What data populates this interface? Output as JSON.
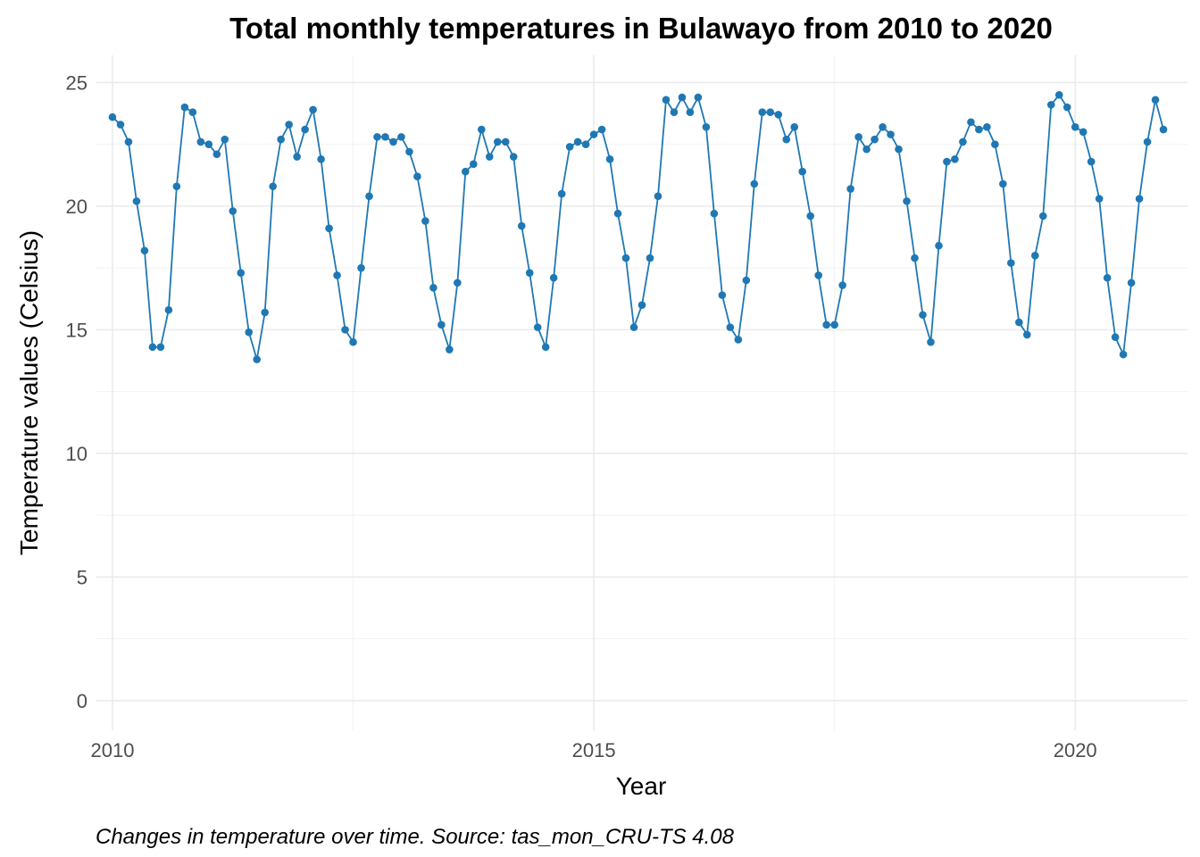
{
  "chart_data": {
    "type": "line",
    "title": "Total monthly temperatures in Bulawayo from 2010 to 2020",
    "xlabel": "Year",
    "ylabel": "Temperature values (Celsius)",
    "caption": "Changes in temperature over time. Source: tas_mon_CRU-TS 4.08",
    "x_ticks": [
      "2010",
      "2015",
      "2020"
    ],
    "y_ticks": [
      "0",
      "5",
      "10",
      "15",
      "20",
      "25"
    ],
    "xlim": [
      "2009-11",
      "2021-03"
    ],
    "ylim": [
      -1.2,
      26.1
    ],
    "grid": true,
    "legend": "none",
    "colors": {
      "series": "#1f78b4",
      "grid": "#ebebeb"
    },
    "x_start": "2010-01",
    "series": [
      {
        "values": [
          23.6,
          23.3,
          22.6,
          20.2,
          18.2,
          14.3,
          14.3,
          15.8,
          20.8,
          24.0,
          23.8,
          22.6,
          22.5,
          22.1,
          22.7,
          19.8,
          17.3,
          14.9,
          13.8,
          15.7,
          20.8,
          22.7,
          23.3,
          22.0,
          23.1,
          23.9,
          21.9,
          19.1,
          17.2,
          15.0,
          14.5,
          17.5,
          20.4,
          22.8,
          22.8,
          22.6,
          22.8,
          22.2,
          21.2,
          19.4,
          16.7,
          15.2,
          14.2,
          16.9,
          21.4,
          21.7,
          23.1,
          22.0,
          22.6,
          22.6,
          22.0,
          19.2,
          17.3,
          15.1,
          14.3,
          17.1,
          20.5,
          22.4,
          22.6,
          22.5,
          22.9,
          23.1,
          21.9,
          19.7,
          17.9,
          15.1,
          16.0,
          17.9,
          20.4,
          24.3,
          23.8,
          24.4,
          23.8,
          24.4,
          23.2,
          19.7,
          16.4,
          15.1,
          14.6,
          17.0,
          20.9,
          23.8,
          23.8,
          23.7,
          22.7,
          23.2,
          21.4,
          19.6,
          17.2,
          15.2,
          15.2,
          16.8,
          20.7,
          22.8,
          22.3,
          22.7,
          23.2,
          22.9,
          22.3,
          20.2,
          17.9,
          15.6,
          14.5,
          18.4,
          21.8,
          21.9,
          22.6,
          23.4,
          23.1,
          23.2,
          22.5,
          20.9,
          17.7,
          15.3,
          14.8,
          18.0,
          19.6,
          24.1,
          24.5,
          24.0,
          23.2,
          23.0,
          21.8,
          20.3,
          17.1,
          14.7,
          14.0,
          16.9,
          20.3,
          22.6,
          24.3,
          23.1
        ]
      }
    ]
  }
}
